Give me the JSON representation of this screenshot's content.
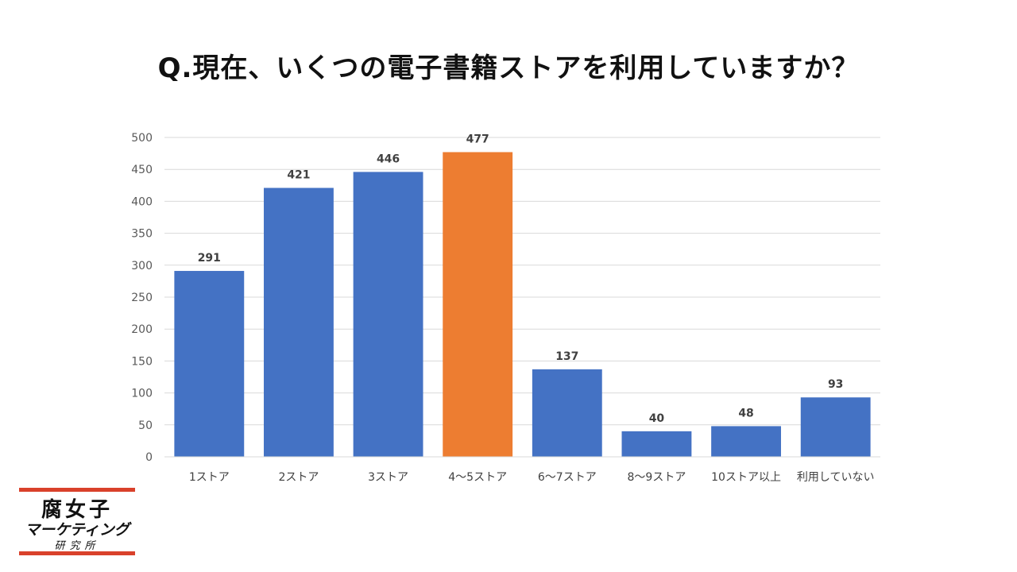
{
  "title": "Q.現在、いくつの電子書籍ストアを利用していますか？",
  "chart_data": {
    "type": "bar",
    "categories": [
      "1ストア",
      "2ストア",
      "3ストア",
      "4～5ストア",
      "6～7ストア",
      "8～9ストア",
      "10ストア以上",
      "利用していない"
    ],
    "values": [
      291,
      421,
      446,
      477,
      137,
      40,
      48,
      93
    ],
    "ylim": [
      0,
      500
    ],
    "yticks": [
      0,
      50,
      100,
      150,
      200,
      250,
      300,
      350,
      400,
      450,
      500
    ],
    "grid": true,
    "bar_color": "#4472c4",
    "highlight_color": "#ed7d31",
    "highlight_index": 3
  },
  "logo": {
    "line1": "腐女子",
    "line2": "マーケティング",
    "line3": "研究所"
  }
}
